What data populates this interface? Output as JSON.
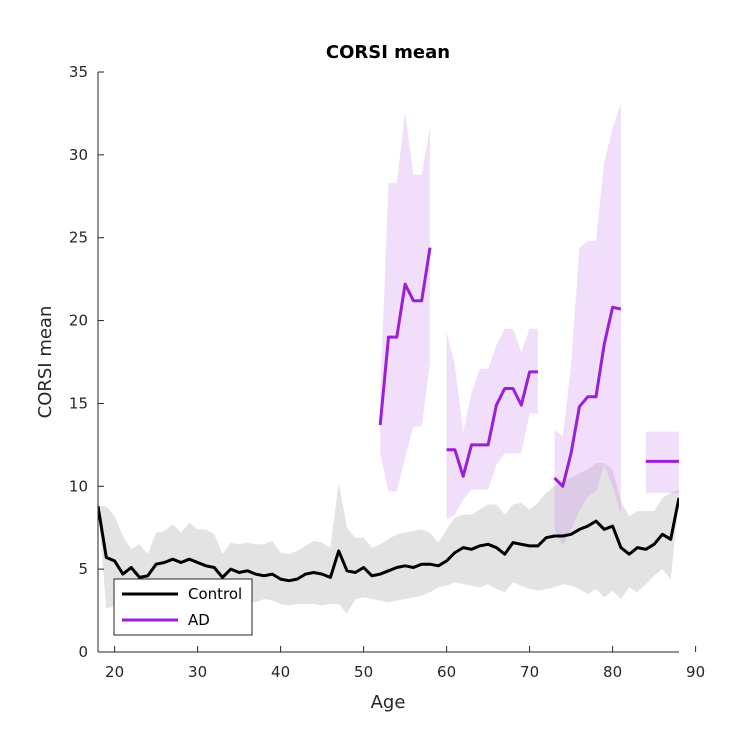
{
  "chart_data": {
    "type": "line",
    "title": "CORSI mean",
    "xlabel": "Age",
    "ylabel": "CORSI mean",
    "xlim": [
      18,
      88
    ],
    "ylim": [
      0,
      35
    ],
    "xticks": [
      "20",
      "30",
      "40",
      "50",
      "60",
      "70",
      "80",
      "90"
    ],
    "yticks": [
      "0",
      "5",
      "10",
      "15",
      "20",
      "25",
      "30",
      "35"
    ],
    "grid": false,
    "legend_position": "bottom-left",
    "series": [
      {
        "name": "Control",
        "color": "#000000",
        "band_color": "#e3e3e3",
        "x": [
          18,
          19,
          20,
          21,
          22,
          23,
          24,
          25,
          26,
          27,
          28,
          29,
          30,
          31,
          32,
          33,
          34,
          35,
          36,
          37,
          38,
          39,
          40,
          41,
          42,
          43,
          44,
          45,
          46,
          47,
          48,
          49,
          50,
          51,
          52,
          53,
          54,
          55,
          56,
          57,
          58,
          59,
          60,
          61,
          62,
          63,
          64,
          65,
          66,
          67,
          68,
          69,
          70,
          71,
          72,
          73,
          74,
          75,
          76,
          77,
          78,
          79,
          80,
          81,
          82,
          83,
          84,
          85,
          86,
          87,
          88
        ],
        "y": [
          8.8,
          5.7,
          5.5,
          4.7,
          5.1,
          4.5,
          4.6,
          5.3,
          5.4,
          5.6,
          5.4,
          5.6,
          5.4,
          5.2,
          5.1,
          4.5,
          5.0,
          4.8,
          4.9,
          4.7,
          4.6,
          4.7,
          4.4,
          4.3,
          4.4,
          4.7,
          4.8,
          4.7,
          4.5,
          6.1,
          4.9,
          4.8,
          5.1,
          4.6,
          4.7,
          4.9,
          5.1,
          5.2,
          5.1,
          5.3,
          5.3,
          5.2,
          5.5,
          6.0,
          6.3,
          6.2,
          6.4,
          6.5,
          6.3,
          5.9,
          6.6,
          6.5,
          6.4,
          6.4,
          6.9,
          7.0,
          7.0,
          7.1,
          7.4,
          7.6,
          7.9,
          7.4,
          7.6,
          6.3,
          5.9,
          6.3,
          6.2,
          6.5,
          7.1,
          6.8,
          9.3
        ],
        "band_lower": [
          8.8,
          2.6,
          2.8,
          2.9,
          3.0,
          2.9,
          3.2,
          3.1,
          3.3,
          3.1,
          3.1,
          2.9,
          2.9,
          3.2,
          3.3,
          3.5,
          3.2,
          3.1,
          3.0,
          3.0,
          3.2,
          3.1,
          2.9,
          2.8,
          2.9,
          2.9,
          2.9,
          2.8,
          2.9,
          2.9,
          2.3,
          3.2,
          3.3,
          3.2,
          3.1,
          3.0,
          3.1,
          3.2,
          3.3,
          3.4,
          3.6,
          3.9,
          4.0,
          4.2,
          4.1,
          4.0,
          3.9,
          4.1,
          3.8,
          3.6,
          4.2,
          4.0,
          3.8,
          3.7,
          3.8,
          3.9,
          4.1,
          4.0,
          3.8,
          3.5,
          3.8,
          3.3,
          3.7,
          3.2,
          3.9,
          3.6,
          4.1,
          4.6,
          5.0,
          4.4,
          9.3
        ],
        "band_upper": [
          8.8,
          8.8,
          8.2,
          7.0,
          6.2,
          6.5,
          5.9,
          7.2,
          7.3,
          7.7,
          7.2,
          7.8,
          7.4,
          7.4,
          7.1,
          5.9,
          6.6,
          6.5,
          6.6,
          6.5,
          6.5,
          6.7,
          6.0,
          5.9,
          6.1,
          6.4,
          6.7,
          6.6,
          6.3,
          10.2,
          7.5,
          6.9,
          6.9,
          6.3,
          6.5,
          6.8,
          7.1,
          7.2,
          7.3,
          7.4,
          7.2,
          6.6,
          7.4,
          8.1,
          8.3,
          8.3,
          8.6,
          8.9,
          8.9,
          8.3,
          8.9,
          9.0,
          8.6,
          9.0,
          9.6,
          10.0,
          10.3,
          10.5,
          10.8,
          11.0,
          11.4,
          11.4,
          11.0,
          9.1,
          8.2,
          8.5,
          8.5,
          8.5,
          9.3,
          9.6,
          9.8
        ]
      },
      {
        "name": "AD",
        "color": "#9b1fd8",
        "band_color": "#f0ddf9",
        "segments": [
          {
            "x": [
              52,
              53,
              54,
              55,
              56,
              57,
              58
            ],
            "y": [
              13.7,
              19.0,
              19.0,
              22.2,
              21.2,
              21.2,
              24.4
            ],
            "band_lower": [
              12.0,
              9.7,
              9.7,
              11.7,
              13.6,
              13.6,
              17.5
            ],
            "band_upper": [
              15.4,
              28.3,
              28.3,
              32.6,
              28.8,
              28.8,
              31.7
            ]
          },
          {
            "x": [
              60,
              61,
              62,
              63,
              64,
              65,
              66,
              67,
              68,
              69,
              70,
              71
            ],
            "y": [
              12.2,
              12.2,
              10.6,
              12.5,
              12.5,
              12.5,
              14.9,
              15.9,
              15.9,
              14.9,
              16.9,
              16.9
            ],
            "band_lower": [
              8.0,
              8.3,
              9.2,
              9.8,
              9.8,
              9.8,
              11.3,
              12.0,
              12.0,
              12.0,
              14.4,
              14.4
            ],
            "band_upper": [
              19.3,
              17.3,
              13.3,
              15.6,
              17.1,
              17.1,
              18.5,
              19.5,
              19.5,
              18.1,
              19.5,
              19.5
            ]
          },
          {
            "x": [
              73,
              74,
              75,
              76,
              77,
              78,
              79,
              80,
              81
            ],
            "y": [
              10.5,
              10.0,
              12.0,
              14.8,
              15.4,
              15.4,
              18.6,
              20.8,
              20.7
            ],
            "band_lower": [
              7.4,
              6.4,
              7.4,
              8.5,
              9.4,
              9.7,
              11.3,
              10.0,
              8.3
            ],
            "band_upper": [
              13.4,
              13.0,
              17.3,
              24.4,
              24.8,
              24.8,
              29.6,
              31.6,
              33.1
            ]
          },
          {
            "x": [
              84,
              85,
              86,
              87,
              88
            ],
            "y": [
              11.5,
              11.5,
              11.5,
              11.5,
              11.5
            ],
            "band_lower": [
              9.6,
              9.6,
              9.6,
              9.6,
              9.6
            ],
            "band_upper": [
              13.3,
              13.3,
              13.3,
              13.3,
              13.3
            ]
          }
        ]
      }
    ]
  }
}
